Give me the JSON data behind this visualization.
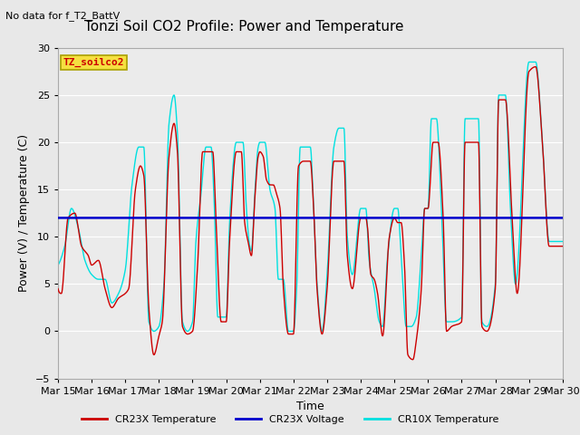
{
  "title": "Tonzi Soil CO2 Profile: Power and Temperature",
  "no_data_text": "No data for f_T2_BattV",
  "box_label": "TZ_soilco2",
  "xlabel": "Time",
  "ylabel": "Power (V) / Temperature (C)",
  "ylim": [
    -5,
    30
  ],
  "yticks": [
    -5,
    0,
    5,
    10,
    15,
    20,
    25,
    30
  ],
  "x_tick_labels": [
    "Mar 15",
    "Mar 16",
    "Mar 17",
    "Mar 18",
    "Mar 19",
    "Mar 20",
    "Mar 21",
    "Mar 22",
    "Mar 23",
    "Mar 24",
    "Mar 25",
    "Mar 26",
    "Mar 27",
    "Mar 28",
    "Mar 29",
    "Mar 30"
  ],
  "voltage_level": 12.0,
  "fig_bg_color": "#e8e8e8",
  "plot_bg_color": "#ebebeb",
  "cr23x_color": "#cc0000",
  "cr10x_color": "#00e0e0",
  "voltage_color": "#0000cc",
  "legend_entries": [
    "CR23X Temperature",
    "CR23X Voltage",
    "CR10X Temperature"
  ],
  "title_fontsize": 11,
  "axis_fontsize": 9,
  "tick_fontsize": 8,
  "grid_color": "#ffffff",
  "spine_color": "#aaaaaa"
}
